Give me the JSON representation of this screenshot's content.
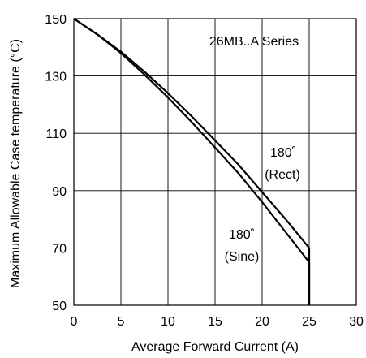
{
  "chart_data": {
    "type": "line",
    "title": "",
    "xlabel": "Average Forward Current (A)",
    "ylabel": "Maximum Allowable Case temperature (°C)",
    "xlim": [
      0,
      30
    ],
    "ylim": [
      50,
      150
    ],
    "xticks": [
      0,
      5,
      10,
      15,
      20,
      25,
      30
    ],
    "yticks": [
      50,
      70,
      90,
      110,
      130,
      150
    ],
    "grid": true,
    "annotations": [
      {
        "text": "26MB..A Series"
      },
      {
        "text": "180˚"
      },
      {
        "text": "(Rect)"
      },
      {
        "text": "180˚"
      },
      {
        "text": "(Sine)"
      }
    ],
    "series": [
      {
        "label_ref": "(Rect)",
        "x": [
          0,
          2.5,
          5,
          7.5,
          10,
          12.5,
          15,
          17.5,
          20,
          22.5,
          25,
          25
        ],
        "y": [
          150,
          144.5,
          138.5,
          131.5,
          124,
          116,
          107.5,
          99,
          89.5,
          80,
          70,
          50
        ]
      },
      {
        "label_ref": "(Sine)",
        "x": [
          0,
          2.5,
          5,
          7.5,
          10,
          12.5,
          15,
          17.5,
          20,
          22.5,
          25,
          25
        ],
        "y": [
          150,
          144.5,
          138,
          130.5,
          122.5,
          114,
          105,
          96,
          86,
          75.5,
          65,
          50
        ]
      }
    ]
  }
}
